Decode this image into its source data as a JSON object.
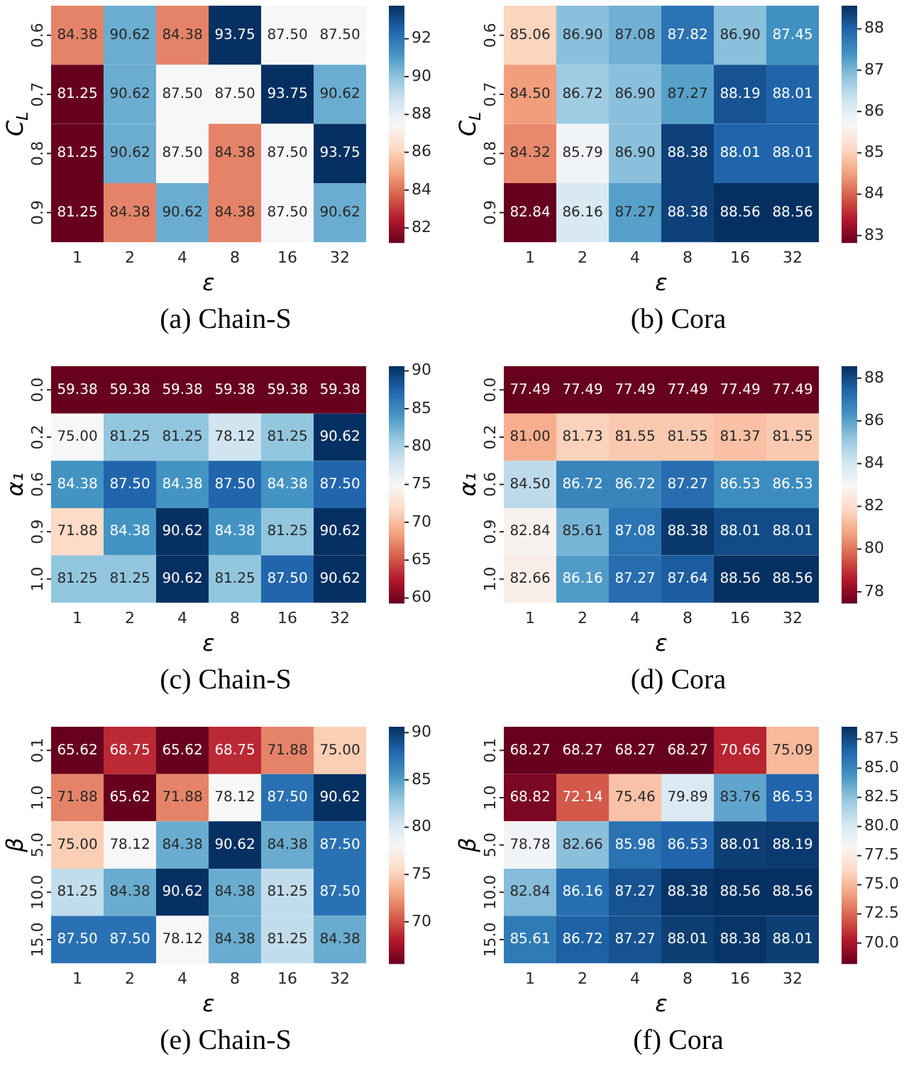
{
  "chart_data": [
    {
      "type": "heatmap",
      "title": "(a) Chain-S",
      "xlabel": "ε",
      "ylabel": "C$_{L}$",
      "categories": [
        "1",
        "2",
        "4",
        "8",
        "16",
        "32"
      ],
      "y_categories": [
        "0.6",
        "0.7",
        "0.8",
        "0.9"
      ],
      "cells": [
        [
          84.38,
          90.62,
          84.38,
          93.75,
          87.5,
          87.5
        ],
        [
          81.25,
          90.62,
          87.5,
          87.5,
          93.75,
          90.62
        ],
        [
          81.25,
          90.62,
          87.5,
          84.38,
          87.5,
          93.75
        ],
        [
          81.25,
          84.38,
          90.62,
          84.38,
          87.5,
          90.62
        ]
      ],
      "cell_labels": [
        [
          "84.38",
          "90.62",
          "84.38",
          "93.75",
          "87.50",
          "87.50"
        ],
        [
          "81.25",
          "90.62",
          "87.50",
          "87.50",
          "93.75",
          "90.62"
        ],
        [
          "81.25",
          "90.62",
          "87.50",
          "84.38",
          "87.50",
          "93.75"
        ],
        [
          "81.25",
          "84.38",
          "90.62",
          "84.38",
          "87.50",
          "90.62"
        ]
      ],
      "clim": [
        81.25,
        93.75
      ],
      "cticks": [
        82,
        84,
        86,
        88,
        90,
        92
      ]
    },
    {
      "type": "heatmap",
      "title": "(b) Cora",
      "xlabel": "ε",
      "ylabel": "C$_{L}$",
      "categories": [
        "1",
        "2",
        "4",
        "8",
        "16",
        "32"
      ],
      "y_categories": [
        "0.6",
        "0.7",
        "0.8",
        "0.9"
      ],
      "cells": [
        [
          85.06,
          86.9,
          87.08,
          87.82,
          86.9,
          87.45
        ],
        [
          84.5,
          86.72,
          86.9,
          87.27,
          88.19,
          88.01
        ],
        [
          84.32,
          85.79,
          86.9,
          88.38,
          88.01,
          88.01
        ],
        [
          82.84,
          86.16,
          87.27,
          88.38,
          88.56,
          88.56
        ]
      ],
      "cell_labels": [
        [
          "85.06",
          "86.90",
          "87.08",
          "87.82",
          "86.90",
          "87.45"
        ],
        [
          "84.50",
          "86.72",
          "86.90",
          "87.27",
          "88.19",
          "88.01"
        ],
        [
          "84.32",
          "85.79",
          "86.90",
          "88.38",
          "88.01",
          "88.01"
        ],
        [
          "82.84",
          "86.16",
          "87.27",
          "88.38",
          "88.56",
          "88.56"
        ]
      ],
      "clim": [
        82.84,
        88.56
      ],
      "cticks": [
        83,
        84,
        85,
        86,
        87,
        88
      ]
    },
    {
      "type": "heatmap",
      "title": "(c) Chain-S",
      "xlabel": "ε",
      "ylabel": "α₁",
      "categories": [
        "1",
        "2",
        "4",
        "8",
        "16",
        "32"
      ],
      "y_categories": [
        "0.0",
        "0.2",
        "0.6",
        "0.9",
        "1.0"
      ],
      "cells": [
        [
          59.38,
          59.38,
          59.38,
          59.38,
          59.38,
          59.38
        ],
        [
          75.0,
          81.25,
          81.25,
          78.12,
          81.25,
          90.62
        ],
        [
          84.38,
          87.5,
          84.38,
          87.5,
          84.38,
          87.5
        ],
        [
          71.88,
          84.38,
          90.62,
          84.38,
          81.25,
          90.62
        ],
        [
          81.25,
          81.25,
          90.62,
          81.25,
          87.5,
          90.62
        ]
      ],
      "cell_labels": [
        [
          "59.38",
          "59.38",
          "59.38",
          "59.38",
          "59.38",
          "59.38"
        ],
        [
          "75.00",
          "81.25",
          "81.25",
          "78.12",
          "81.25",
          "90.62"
        ],
        [
          "84.38",
          "87.50",
          "84.38",
          "87.50",
          "84.38",
          "87.50"
        ],
        [
          "71.88",
          "84.38",
          "90.62",
          "84.38",
          "81.25",
          "90.62"
        ],
        [
          "81.25",
          "81.25",
          "90.62",
          "81.25",
          "87.50",
          "90.62"
        ]
      ],
      "clim": [
        59.38,
        90.62
      ],
      "cticks": [
        60,
        65,
        70,
        75,
        80,
        85,
        90
      ]
    },
    {
      "type": "heatmap",
      "title": "(d) Cora",
      "xlabel": "ε",
      "ylabel": "α₁",
      "categories": [
        "1",
        "2",
        "4",
        "8",
        "16",
        "32"
      ],
      "y_categories": [
        "0.0",
        "0.2",
        "0.6",
        "0.9",
        "1.0"
      ],
      "cells": [
        [
          77.49,
          77.49,
          77.49,
          77.49,
          77.49,
          77.49
        ],
        [
          81.0,
          81.73,
          81.55,
          81.55,
          81.37,
          81.55
        ],
        [
          84.5,
          86.72,
          86.72,
          87.27,
          86.53,
          86.53
        ],
        [
          82.84,
          85.61,
          87.08,
          88.38,
          88.01,
          88.01
        ],
        [
          82.66,
          86.16,
          87.27,
          87.64,
          88.56,
          88.56
        ]
      ],
      "cell_labels": [
        [
          "77.49",
          "77.49",
          "77.49",
          "77.49",
          "77.49",
          "77.49"
        ],
        [
          "81.00",
          "81.73",
          "81.55",
          "81.55",
          "81.37",
          "81.55"
        ],
        [
          "84.50",
          "86.72",
          "86.72",
          "87.27",
          "86.53",
          "86.53"
        ],
        [
          "82.84",
          "85.61",
          "87.08",
          "88.38",
          "88.01",
          "88.01"
        ],
        [
          "82.66",
          "86.16",
          "87.27",
          "87.64",
          "88.56",
          "88.56"
        ]
      ],
      "clim": [
        77.49,
        88.56
      ],
      "cticks": [
        78,
        80,
        82,
        84,
        86,
        88
      ]
    },
    {
      "type": "heatmap",
      "title": "(e) Chain-S",
      "xlabel": "ε",
      "ylabel": "β",
      "categories": [
        "1",
        "2",
        "4",
        "8",
        "16",
        "32"
      ],
      "y_categories": [
        "0.1",
        "1.0",
        "5.0",
        "10.0",
        "15.0"
      ],
      "cells": [
        [
          65.62,
          68.75,
          65.62,
          68.75,
          71.88,
          75.0
        ],
        [
          71.88,
          65.62,
          71.88,
          78.12,
          87.5,
          90.62
        ],
        [
          75.0,
          78.12,
          84.38,
          90.62,
          84.38,
          87.5
        ],
        [
          81.25,
          84.38,
          90.62,
          84.38,
          81.25,
          87.5
        ],
        [
          87.5,
          87.5,
          78.12,
          84.38,
          81.25,
          84.38
        ]
      ],
      "cell_labels": [
        [
          "65.62",
          "68.75",
          "65.62",
          "68.75",
          "71.88",
          "75.00"
        ],
        [
          "71.88",
          "65.62",
          "71.88",
          "78.12",
          "87.50",
          "90.62"
        ],
        [
          "75.00",
          "78.12",
          "84.38",
          "90.62",
          "84.38",
          "87.50"
        ],
        [
          "81.25",
          "84.38",
          "90.62",
          "84.38",
          "81.25",
          "87.50"
        ],
        [
          "87.50",
          "87.50",
          "78.12",
          "84.38",
          "81.25",
          "84.38"
        ]
      ],
      "clim": [
        65.62,
        90.62
      ],
      "cticks": [
        70,
        75,
        80,
        85,
        90
      ]
    },
    {
      "type": "heatmap",
      "title": "(f) Cora",
      "xlabel": "ε",
      "ylabel": "β",
      "categories": [
        "1",
        "2",
        "4",
        "8",
        "16",
        "32"
      ],
      "y_categories": [
        "0.1",
        "1.0",
        "5.0",
        "10.0",
        "15.0"
      ],
      "cells": [
        [
          68.27,
          68.27,
          68.27,
          68.27,
          70.66,
          75.09
        ],
        [
          68.82,
          72.14,
          75.46,
          79.89,
          83.76,
          86.53
        ],
        [
          78.78,
          82.66,
          85.98,
          86.53,
          88.01,
          88.19
        ],
        [
          82.84,
          86.16,
          87.27,
          88.38,
          88.56,
          88.56
        ],
        [
          85.61,
          86.72,
          87.27,
          88.01,
          88.38,
          88.01
        ]
      ],
      "cell_labels": [
        [
          "68.27",
          "68.27",
          "68.27",
          "68.27",
          "70.66",
          "75.09"
        ],
        [
          "68.82",
          "72.14",
          "75.46",
          "79.89",
          "83.76",
          "86.53"
        ],
        [
          "78.78",
          "82.66",
          "85.98",
          "86.53",
          "88.01",
          "88.19"
        ],
        [
          "82.84",
          "86.16",
          "87.27",
          "88.38",
          "88.56",
          "88.56"
        ],
        [
          "85.61",
          "86.72",
          "87.27",
          "88.01",
          "88.38",
          "88.01"
        ]
      ],
      "clim": [
        68.27,
        88.56
      ],
      "cticks": [
        {
          "value": 70,
          "label": "70.0"
        },
        {
          "value": 72.5,
          "label": "72.5"
        },
        {
          "value": 75,
          "label": "75.0"
        },
        {
          "value": 77.5,
          "label": "77.5"
        },
        {
          "value": 80,
          "label": "80.0"
        },
        {
          "value": 82.5,
          "label": "82.5"
        },
        {
          "value": 85,
          "label": "85.0"
        },
        {
          "value": 87.5,
          "label": "87.5"
        }
      ]
    }
  ]
}
